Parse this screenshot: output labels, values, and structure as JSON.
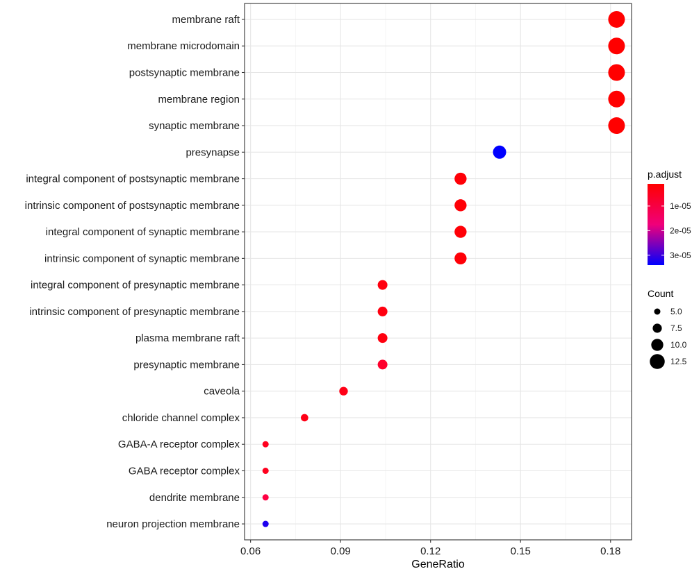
{
  "chart_data": {
    "type": "scatter",
    "xlabel": "GeneRatio",
    "ylabel": "",
    "xlim": [
      0.058,
      0.187
    ],
    "xticks": [
      0.06,
      0.09,
      0.12,
      0.15,
      0.18
    ],
    "xtick_labels": [
      "0.06",
      "0.09",
      "0.12",
      "0.15",
      "0.18"
    ],
    "grid": true,
    "categories": [
      "membrane raft",
      "membrane microdomain",
      "postsynaptic membrane",
      "membrane region",
      "synaptic membrane",
      "presynapse",
      "integral component of postsynaptic membrane",
      "intrinsic component of postsynaptic membrane",
      "integral component of synaptic membrane",
      "intrinsic component of synaptic membrane",
      "integral component of presynaptic membrane",
      "intrinsic component of presynaptic membrane",
      "plasma membrane raft",
      "presynaptic membrane",
      "caveola",
      "chloride channel complex",
      "GABA-A receptor complex",
      "GABA receptor complex",
      "dendrite membrane",
      "neuron projection membrane"
    ],
    "points": [
      {
        "term": "membrane raft",
        "gene_ratio": 0.182,
        "count": 14,
        "p_adjust": 1e-06
      },
      {
        "term": "membrane microdomain",
        "gene_ratio": 0.182,
        "count": 14,
        "p_adjust": 1e-06
      },
      {
        "term": "postsynaptic membrane",
        "gene_ratio": 0.182,
        "count": 14,
        "p_adjust": 1e-06
      },
      {
        "term": "membrane region",
        "gene_ratio": 0.182,
        "count": 14,
        "p_adjust": 1e-06
      },
      {
        "term": "synaptic membrane",
        "gene_ratio": 0.182,
        "count": 14,
        "p_adjust": 1e-06
      },
      {
        "term": "presynapse",
        "gene_ratio": 0.143,
        "count": 11,
        "p_adjust": 3.4e-05
      },
      {
        "term": "integral component of postsynaptic membrane",
        "gene_ratio": 0.13,
        "count": 10,
        "p_adjust": 2e-06
      },
      {
        "term": "intrinsic component of postsynaptic membrane",
        "gene_ratio": 0.13,
        "count": 10,
        "p_adjust": 2e-06
      },
      {
        "term": "integral component of synaptic membrane",
        "gene_ratio": 0.13,
        "count": 10,
        "p_adjust": 2e-06
      },
      {
        "term": "intrinsic component of synaptic membrane",
        "gene_ratio": 0.13,
        "count": 10,
        "p_adjust": 2e-06
      },
      {
        "term": "integral component of presynaptic membrane",
        "gene_ratio": 0.104,
        "count": 8,
        "p_adjust": 3e-06
      },
      {
        "term": "intrinsic component of presynaptic membrane",
        "gene_ratio": 0.104,
        "count": 8,
        "p_adjust": 3e-06
      },
      {
        "term": "plasma membrane raft",
        "gene_ratio": 0.104,
        "count": 8,
        "p_adjust": 3e-06
      },
      {
        "term": "presynaptic membrane",
        "gene_ratio": 0.104,
        "count": 8,
        "p_adjust": 7e-06
      },
      {
        "term": "caveola",
        "gene_ratio": 0.091,
        "count": 7,
        "p_adjust": 4e-06
      },
      {
        "term": "chloride channel complex",
        "gene_ratio": 0.078,
        "count": 6,
        "p_adjust": 4e-06
      },
      {
        "term": "GABA-A receptor complex",
        "gene_ratio": 0.065,
        "count": 5,
        "p_adjust": 5e-06
      },
      {
        "term": "GABA receptor complex",
        "gene_ratio": 0.065,
        "count": 5,
        "p_adjust": 5e-06
      },
      {
        "term": "dendrite membrane",
        "gene_ratio": 0.065,
        "count": 5,
        "p_adjust": 1e-05
      },
      {
        "term": "neuron projection membrane",
        "gene_ratio": 0.065,
        "count": 5,
        "p_adjust": 3.2e-05
      }
    ],
    "color_legend": {
      "title": "p.adjust",
      "ticks": [
        1e-05,
        2e-05,
        3e-05
      ],
      "tick_labels": [
        "1e-05",
        "2e-05",
        "3e-05"
      ],
      "range": [
        1e-06,
        3.4e-05
      ],
      "low_color": "#ff0000",
      "high_color": "#0000ff"
    },
    "size_legend": {
      "title": "Count",
      "values": [
        5.0,
        7.5,
        10.0,
        12.5
      ],
      "labels": [
        "5.0",
        "7.5",
        "10.0",
        "12.5"
      ],
      "range": [
        5,
        14
      ]
    }
  }
}
